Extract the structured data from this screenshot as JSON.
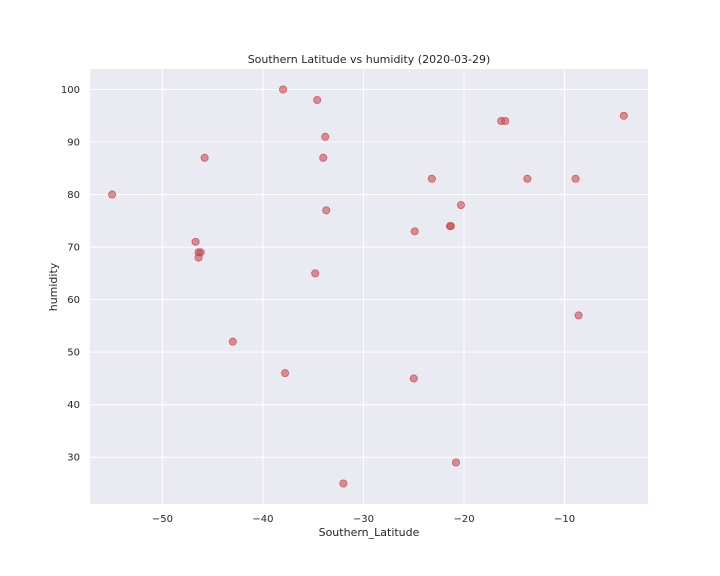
{
  "chart_data": {
    "type": "scatter",
    "title": "Southern Latitude vs humidity (2020-03-29)",
    "xlabel": "Southern_Latitude",
    "ylabel": "humidity",
    "xlim": [
      -57.2,
      -1.7
    ],
    "ylim": [
      21.1,
      103.9
    ],
    "xticks": [
      -50,
      -40,
      -30,
      -20,
      -10
    ],
    "yticks": [
      30,
      40,
      50,
      60,
      70,
      80,
      90,
      100
    ],
    "grid": true,
    "colors": {
      "background": "#eaeaf2",
      "grid": "#ffffff",
      "marker": "#c44e52"
    },
    "points": [
      {
        "x": -55.0,
        "y": 80
      },
      {
        "x": -46.7,
        "y": 71
      },
      {
        "x": -46.2,
        "y": 69
      },
      {
        "x": -46.4,
        "y": 69
      },
      {
        "x": -46.4,
        "y": 68
      },
      {
        "x": -45.8,
        "y": 87
      },
      {
        "x": -43.0,
        "y": 52
      },
      {
        "x": -38.0,
        "y": 100
      },
      {
        "x": -37.8,
        "y": 46
      },
      {
        "x": -34.6,
        "y": 98
      },
      {
        "x": -34.8,
        "y": 65
      },
      {
        "x": -34.0,
        "y": 87
      },
      {
        "x": -33.8,
        "y": 91
      },
      {
        "x": -33.7,
        "y": 77
      },
      {
        "x": -32.0,
        "y": 25
      },
      {
        "x": -24.9,
        "y": 73
      },
      {
        "x": -25.0,
        "y": 45
      },
      {
        "x": -23.2,
        "y": 83
      },
      {
        "x": -21.4,
        "y": 74
      },
      {
        "x": -21.3,
        "y": 74
      },
      {
        "x": -20.8,
        "y": 29
      },
      {
        "x": -20.3,
        "y": 78
      },
      {
        "x": -16.3,
        "y": 94
      },
      {
        "x": -15.9,
        "y": 94
      },
      {
        "x": -13.7,
        "y": 83
      },
      {
        "x": -8.9,
        "y": 83
      },
      {
        "x": -8.6,
        "y": 57
      },
      {
        "x": -4.1,
        "y": 95
      }
    ]
  }
}
